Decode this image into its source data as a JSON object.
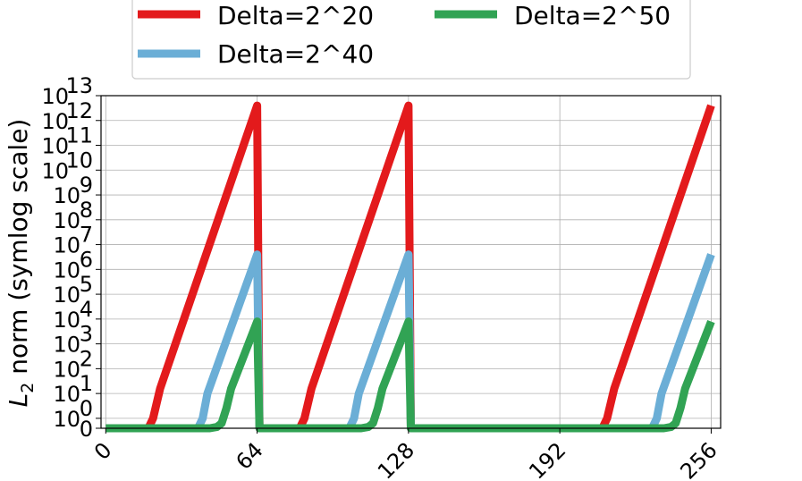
{
  "chart_data": {
    "type": "line",
    "ylabel_math": "L",
    "ylabel_sub": "2",
    "ylabel_rest": " norm (symlog scale)",
    "yscale": "symlog",
    "xlim": [
      -2,
      260
    ],
    "xticks": [
      0,
      64,
      128,
      192,
      256
    ],
    "xtick_labels": [
      "0",
      "64",
      "128",
      "192",
      "256"
    ],
    "ylim_exponent": [
      -0.4,
      13
    ],
    "ytick_labels": [
      {
        "base": "0",
        "exp": "",
        "exponent": -0.4
      },
      {
        "base": "10",
        "exp": "0",
        "exponent": 0
      },
      {
        "base": "10",
        "exp": "1",
        "exponent": 1
      },
      {
        "base": "10",
        "exp": "2",
        "exponent": 2
      },
      {
        "base": "10",
        "exp": "3",
        "exponent": 3
      },
      {
        "base": "10",
        "exp": "4",
        "exponent": 4
      },
      {
        "base": "10",
        "exp": "5",
        "exponent": 5
      },
      {
        "base": "10",
        "exp": "6",
        "exponent": 6
      },
      {
        "base": "10",
        "exp": "7",
        "exponent": 7
      },
      {
        "base": "10",
        "exp": "8",
        "exponent": 8
      },
      {
        "base": "10",
        "exp": "9",
        "exponent": 9
      },
      {
        "base": "10",
        "exp": "10",
        "exponent": 10
      },
      {
        "base": "10",
        "exp": "11",
        "exponent": 11
      },
      {
        "base": "10",
        "exp": "12",
        "exponent": 12
      },
      {
        "base": "10",
        "exp": "13",
        "exponent": 13
      }
    ],
    "grid": true,
    "legend_placement": "top-center",
    "series": [
      {
        "name": "Delta=2^20",
        "color": "#e31a1c",
        "points": [
          [
            0,
            -0.4
          ],
          [
            18,
            -0.4
          ],
          [
            20,
            0
          ],
          [
            23,
            1.2
          ],
          [
            64,
            12.6
          ],
          [
            65,
            -0.4
          ],
          [
            82,
            -0.4
          ],
          [
            84,
            0
          ],
          [
            87,
            1.2
          ],
          [
            128,
            12.6
          ],
          [
            129,
            -0.4
          ],
          [
            210,
            -0.4
          ],
          [
            212,
            0
          ],
          [
            215,
            1.2
          ],
          [
            256,
            12.6
          ]
        ]
      },
      {
        "name": "Delta=2^40",
        "color": "#6baed6",
        "points": [
          [
            0,
            -0.4
          ],
          [
            39,
            -0.4
          ],
          [
            41,
            0
          ],
          [
            43,
            1.0
          ],
          [
            64,
            6.6
          ],
          [
            65,
            -0.4
          ],
          [
            103,
            -0.4
          ],
          [
            105,
            0
          ],
          [
            107,
            1.0
          ],
          [
            128,
            6.6
          ],
          [
            129,
            -0.4
          ],
          [
            231,
            -0.4
          ],
          [
            233,
            0
          ],
          [
            235,
            1.0
          ],
          [
            256,
            6.6
          ]
        ]
      },
      {
        "name": "Delta=2^50",
        "color": "#31a354",
        "points": [
          [
            0,
            -0.4
          ],
          [
            44,
            -0.4
          ],
          [
            47,
            -0.35
          ],
          [
            49,
            -0.2
          ],
          [
            51,
            0.4
          ],
          [
            53,
            1.2
          ],
          [
            64,
            3.9
          ],
          [
            65,
            -0.4
          ],
          [
            108,
            -0.4
          ],
          [
            111,
            -0.35
          ],
          [
            113,
            -0.2
          ],
          [
            115,
            0.4
          ],
          [
            117,
            1.2
          ],
          [
            128,
            3.9
          ],
          [
            129,
            -0.4
          ],
          [
            236,
            -0.4
          ],
          [
            239,
            -0.35
          ],
          [
            241,
            -0.2
          ],
          [
            243,
            0.4
          ],
          [
            245,
            1.2
          ],
          [
            256,
            3.9
          ]
        ]
      }
    ]
  }
}
